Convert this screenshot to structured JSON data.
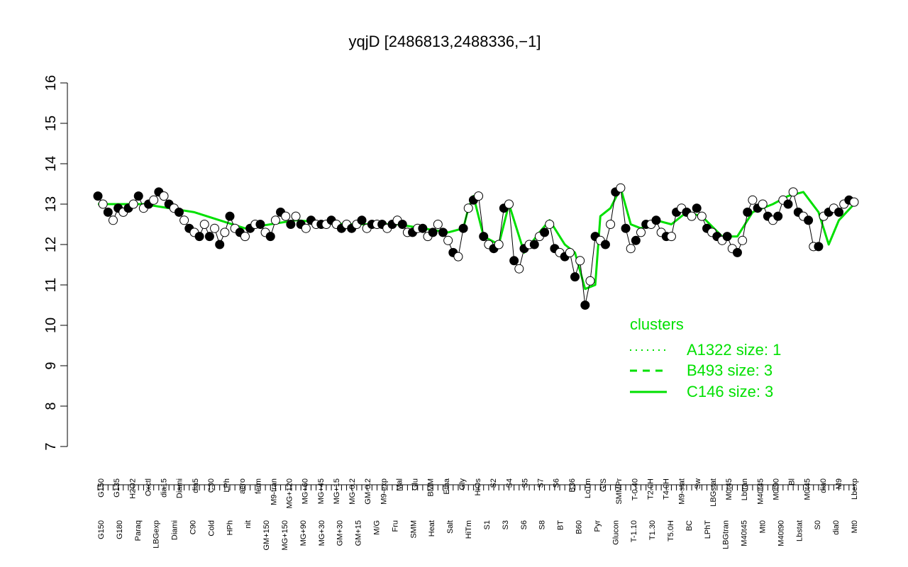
{
  "chart_data": {
    "type": "line",
    "title": "yqjD [2486813,2488336,−1]",
    "xlabel": "",
    "ylabel": "",
    "ylim": [
      7,
      16
    ],
    "yticks": [
      7,
      8,
      9,
      10,
      11,
      12,
      13,
      14,
      15,
      16
    ],
    "grid": false,
    "colors": {
      "line": "#00e000",
      "point_filled": "#000000",
      "point_open": "#ffffff",
      "legend": "#00e000"
    },
    "x_labels_top": [
      "G150",
      "G135",
      "H2O2",
      "Oxctl",
      "dia15",
      "Diami",
      "dia5",
      "C30",
      "LPh",
      "aero",
      "ferm",
      "M9-tran",
      "MG+120",
      "MG+60",
      "MG+45",
      "MG+15",
      "MG-0.2",
      "GM-0.2",
      "M9-exp",
      "Mal",
      "Glu",
      "BMM",
      "Etha",
      "Gly",
      "HiOs",
      "S2",
      "S4",
      "S5",
      "S7",
      "S6",
      "B36",
      "LoTm",
      "G/S",
      "SMMPr",
      "T-0.40",
      "T2.0H",
      "T4.0H",
      "M9-stat",
      "Sw",
      "LBGstat",
      "M0t45",
      "Lbtran",
      "M40t45",
      "M0t90",
      "Bl",
      "M0t45",
      "dia0",
      "M9",
      "Lbexp"
    ],
    "x_labels_bottom": [
      "G150",
      "G180",
      "Paraq",
      "LBGexp",
      "Diami",
      "C90",
      "Cold",
      "HPh",
      "nit",
      "GM+150",
      "MG+150",
      "MG+90",
      "MG+30",
      "GM+30",
      "GM+15",
      "M/G",
      "Fru",
      "SMM",
      "Heat",
      "Salt",
      "HiTm",
      "S1",
      "S3",
      "S6",
      "S8",
      "BT",
      "B60",
      "Pyr",
      "Glucon",
      "T-1.10",
      "T1.30",
      "T5.0H",
      "BC",
      "LPhT",
      "LBGtran",
      "M40t45",
      "Mt0",
      "M40t90",
      "Lbstat",
      "S0",
      "dia0",
      "Mt0"
    ],
    "series": [
      {
        "name": "",
        "x": [
          1,
          2,
          3,
          4,
          5,
          6,
          7,
          8,
          9,
          10,
          11,
          12,
          13,
          14,
          15,
          16,
          17,
          18,
          19,
          20,
          21,
          22,
          23,
          24,
          25,
          26,
          27,
          28,
          29,
          30,
          31,
          32,
          33,
          34,
          35,
          36,
          37,
          38,
          39,
          40,
          41,
          42,
          43,
          44,
          45,
          46,
          47,
          48,
          49,
          50,
          51,
          52,
          53,
          54,
          55,
          56,
          57,
          58,
          59,
          60,
          61,
          62,
          63,
          64,
          65,
          66,
          67,
          68,
          69,
          70,
          71,
          72,
          73,
          74,
          75,
          76,
          77,
          78,
          79,
          80,
          81,
          82,
          83,
          84,
          85,
          86,
          87,
          88,
          89,
          90,
          91,
          92,
          93,
          94,
          95,
          96,
          97,
          98,
          99,
          100,
          101,
          102,
          103,
          104,
          105,
          106,
          107,
          108,
          109,
          110,
          111,
          112,
          113,
          114,
          115,
          116,
          117,
          118,
          119,
          120,
          121,
          122,
          123,
          124,
          125,
          126,
          127,
          128,
          129,
          130,
          131,
          132,
          133,
          134,
          135,
          136,
          137,
          138,
          139,
          140,
          141,
          142,
          143,
          144,
          145,
          146,
          147,
          148,
          149,
          150
        ],
        "y": [
          13.2,
          13.0,
          12.8,
          12.6,
          12.9,
          12.8,
          12.9,
          13.0,
          13.2,
          12.9,
          13.0,
          13.1,
          13.3,
          13.2,
          13.0,
          12.9,
          12.8,
          12.6,
          12.4,
          12.3,
          12.2,
          12.5,
          12.2,
          12.4,
          12.0,
          12.3,
          12.7,
          12.4,
          12.3,
          12.2,
          12.4,
          12.5,
          12.5,
          12.3,
          12.2,
          12.6,
          12.8,
          12.7,
          12.5,
          12.7,
          12.5,
          12.4,
          12.6,
          12.5,
          12.5,
          12.5,
          12.6,
          12.5,
          12.4,
          12.5,
          12.4,
          12.5,
          12.6,
          12.4,
          12.5,
          12.5,
          12.5,
          12.4,
          12.5,
          12.6,
          12.5,
          12.3,
          12.3,
          12.4,
          12.4,
          12.2,
          12.3,
          12.5,
          12.3,
          12.1,
          11.8,
          11.7,
          12.4,
          12.9,
          13.1,
          13.2,
          12.2,
          12.0,
          11.9,
          12.0,
          12.9,
          13.0,
          11.6,
          11.4,
          11.9,
          12.0,
          12.0,
          12.2,
          12.3,
          12.5,
          11.9,
          11.8,
          11.7,
          11.8,
          11.2,
          11.6,
          10.5,
          11.1,
          12.2,
          12.1,
          12.0,
          12.5,
          13.3,
          13.4,
          12.4,
          11.9,
          12.1,
          12.3,
          12.5,
          12.5,
          12.6,
          12.3,
          12.2,
          12.2,
          12.8,
          12.9,
          12.8,
          12.7,
          12.9,
          12.7,
          12.4,
          12.3,
          12.2,
          12.1,
          12.2,
          11.9,
          11.8,
          12.1,
          12.8,
          13.1,
          12.9,
          13.0,
          12.7,
          12.6,
          12.7,
          13.1,
          13.0,
          13.3,
          12.8,
          12.7,
          12.6,
          11.95,
          11.95,
          12.7,
          12.8,
          12.9,
          12.8,
          13.0,
          13.1,
          13.05
        ],
        "filled_every": 2
      },
      {
        "name": "C146",
        "x": [
          1,
          10,
          20,
          30,
          40,
          50,
          60,
          70,
          73,
          74,
          75,
          77,
          80,
          82,
          85,
          88,
          90,
          93,
          95,
          97,
          99,
          100,
          102,
          104,
          106,
          108,
          111,
          114,
          117,
          120,
          124,
          127,
          130,
          134,
          137,
          140,
          143,
          145,
          147,
          150
        ],
        "y": [
          13.0,
          13.0,
          12.8,
          12.4,
          12.6,
          12.5,
          12.5,
          12.3,
          12.4,
          12.9,
          13.2,
          12.2,
          12.0,
          13.0,
          11.8,
          12.3,
          12.6,
          12.0,
          11.8,
          10.9,
          11.0,
          12.7,
          12.9,
          13.4,
          12.5,
          12.4,
          12.6,
          12.5,
          12.8,
          12.7,
          12.2,
          12.2,
          12.8,
          13.0,
          13.2,
          13.3,
          12.8,
          12.0,
          12.6,
          13.0
        ]
      }
    ],
    "legend": {
      "title": "clusters",
      "placement": "right",
      "entries": [
        {
          "label": "A1322 size: 1",
          "style": "dotted"
        },
        {
          "label": "B493 size: 3",
          "style": "dashed"
        },
        {
          "label": "C146 size: 3",
          "style": "solid"
        }
      ]
    }
  }
}
